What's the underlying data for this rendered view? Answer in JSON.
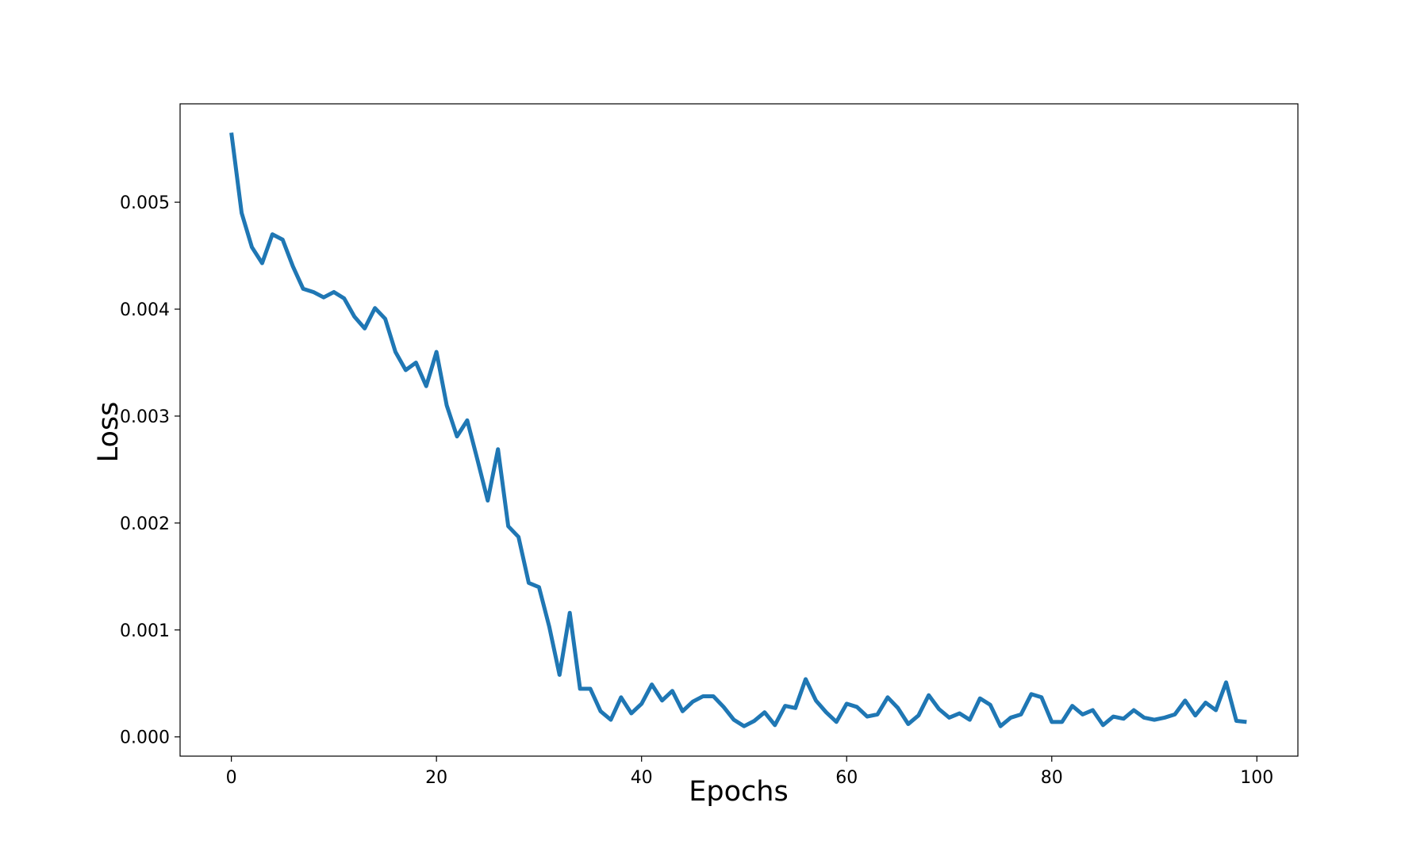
{
  "chart_data": {
    "type": "line",
    "title": "",
    "xlabel": "Epochs",
    "ylabel": "Loss",
    "xlim": [
      -5,
      104
    ],
    "ylim": [
      -0.00018,
      0.00592
    ],
    "x_ticks": [
      0,
      20,
      40,
      60,
      80,
      100
    ],
    "x_tick_labels": [
      "0",
      "20",
      "40",
      "60",
      "80",
      "100"
    ],
    "y_ticks": [
      0.0,
      0.001,
      0.002,
      0.003,
      0.004,
      0.005
    ],
    "y_tick_labels": [
      "0.000",
      "0.001",
      "0.002",
      "0.003",
      "0.004",
      "0.005"
    ],
    "grid": false,
    "series": [
      {
        "color": "#1f77b4",
        "x": [
          0,
          1,
          2,
          3,
          4,
          5,
          6,
          7,
          8,
          9,
          10,
          11,
          12,
          13,
          14,
          15,
          16,
          17,
          18,
          19,
          20,
          21,
          22,
          23,
          24,
          25,
          26,
          27,
          28,
          29,
          30,
          31,
          32,
          33,
          34,
          35,
          36,
          37,
          38,
          39,
          40,
          41,
          42,
          43,
          44,
          45,
          46,
          47,
          48,
          49,
          50,
          51,
          52,
          53,
          54,
          55,
          56,
          57,
          58,
          59,
          60,
          61,
          62,
          63,
          64,
          65,
          66,
          67,
          68,
          69,
          70,
          71,
          72,
          73,
          74,
          75,
          76,
          77,
          78,
          79,
          80,
          81,
          82,
          83,
          84,
          85,
          86,
          87,
          88,
          89,
          90,
          91,
          92,
          93,
          94,
          95,
          96,
          97,
          98,
          99
        ],
        "y": [
          0.00565,
          0.0049,
          0.00458,
          0.00443,
          0.0047,
          0.00465,
          0.0044,
          0.00419,
          0.00416,
          0.00411,
          0.00416,
          0.0041,
          0.00393,
          0.00382,
          0.00401,
          0.00391,
          0.0036,
          0.00343,
          0.0035,
          0.00328,
          0.0036,
          0.0031,
          0.00281,
          0.00296,
          0.00259,
          0.00221,
          0.00269,
          0.00197,
          0.00187,
          0.00144,
          0.0014,
          0.00103,
          0.00058,
          0.00116,
          0.00045,
          0.00045,
          0.00024,
          0.00016,
          0.00037,
          0.00022,
          0.00031,
          0.00049,
          0.00034,
          0.00043,
          0.00024,
          0.00033,
          0.00038,
          0.00038,
          0.00028,
          0.00016,
          0.0001,
          0.00015,
          0.00023,
          0.00011,
          0.00029,
          0.00027,
          0.00054,
          0.00034,
          0.00023,
          0.00014,
          0.00031,
          0.00028,
          0.00019,
          0.00021,
          0.00037,
          0.00027,
          0.00012,
          0.0002,
          0.00039,
          0.00026,
          0.00018,
          0.00022,
          0.00016,
          0.00036,
          0.0003,
          0.0001,
          0.00018,
          0.00021,
          0.0004,
          0.00037,
          0.00014,
          0.00014,
          0.00029,
          0.00021,
          0.00025,
          0.00011,
          0.00019,
          0.00017,
          0.00025,
          0.00018,
          0.00016,
          0.00018,
          0.00021,
          0.00034,
          0.0002,
          0.00032,
          0.00025,
          0.00051,
          0.00015,
          0.00014
        ]
      }
    ]
  }
}
